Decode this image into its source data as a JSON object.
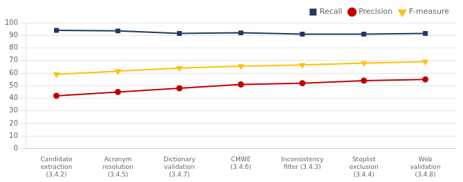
{
  "chart_data": {
    "type": "line",
    "categories": [
      "Candidate\nextraction\n(3.4.2)",
      "Acronym\nresolution\n(3.4.5)",
      "Dictionary\nvalidation\n(3.4.7)",
      "CMWE\n(3.4.6)",
      "Inconsistency\nfilter (3.4.3)",
      "Stoplist\nexclusion\n(3.4.4)",
      "Web\nvalidation\n(3.4.8)"
    ],
    "series": [
      {
        "name": "Recall",
        "color": "#1F3864",
        "marker": "square",
        "values": [
          94.0,
          93.5,
          91.5,
          92.0,
          91.0,
          91.0,
          91.5
        ]
      },
      {
        "name": "Precision",
        "color": "#C00000",
        "marker": "circle",
        "values": [
          42.0,
          45.0,
          48.0,
          51.0,
          52.0,
          54.0,
          55.0
        ]
      },
      {
        "name": "F-measure",
        "color": "#FFC000",
        "marker": "triangle_down",
        "values": [
          59.0,
          61.5,
          64.0,
          65.5,
          66.5,
          68.0,
          69.0
        ]
      }
    ],
    "ylim": [
      0,
      100
    ],
    "yticks": [
      0,
      10,
      20,
      30,
      40,
      50,
      60,
      70,
      80,
      90,
      100
    ],
    "grid": true,
    "legend": "upper right"
  }
}
